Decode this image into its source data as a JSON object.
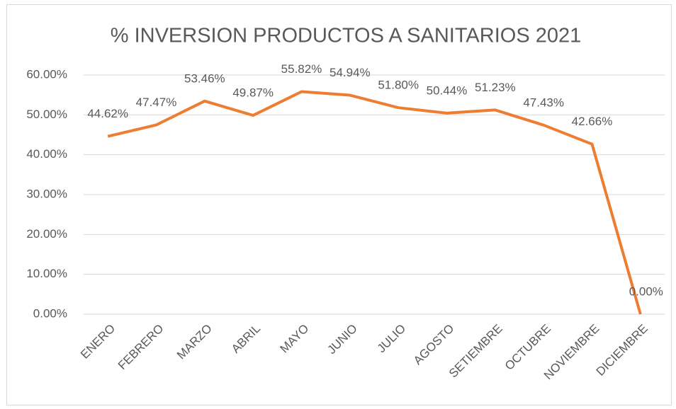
{
  "chart_data": {
    "type": "line",
    "title": "% INVERSION PRODUCTOS A SANITARIOS 2021",
    "categories": [
      "ENERO",
      "FEBRERO",
      "MARZO",
      "ABRIL",
      "MAYO",
      "JUNIO",
      "JULIO",
      "AGOSTO",
      "SETIEMBRE",
      "OCTUBRE",
      "NOVIEMBRE",
      "DICIEMBRE"
    ],
    "series": [
      {
        "name": "% INVERSION",
        "color": "#ed7d31",
        "values": [
          44.62,
          47.47,
          53.46,
          49.87,
          55.82,
          54.94,
          51.8,
          50.44,
          51.23,
          47.43,
          42.66,
          0
        ],
        "value_labels": [
          "44.62%",
          "47.47%",
          "53.46%",
          "49.87%",
          "55.82%",
          "54.94%",
          "51.80%",
          "50.44%",
          "51.23%",
          "47.43%",
          "42.66%",
          "0.00%"
        ]
      }
    ],
    "ylim": [
      0,
      60
    ],
    "yticks": [
      {
        "value": 0,
        "label": "0.00%"
      },
      {
        "value": 10,
        "label": "10.00%"
      },
      {
        "value": 20,
        "label": "20.00%"
      },
      {
        "value": 30,
        "label": "30.00%"
      },
      {
        "value": 40,
        "label": "40.00%"
      },
      {
        "value": 50,
        "label": "50.00%"
      },
      {
        "value": 60,
        "label": "60.00%"
      }
    ],
    "grid": true
  }
}
